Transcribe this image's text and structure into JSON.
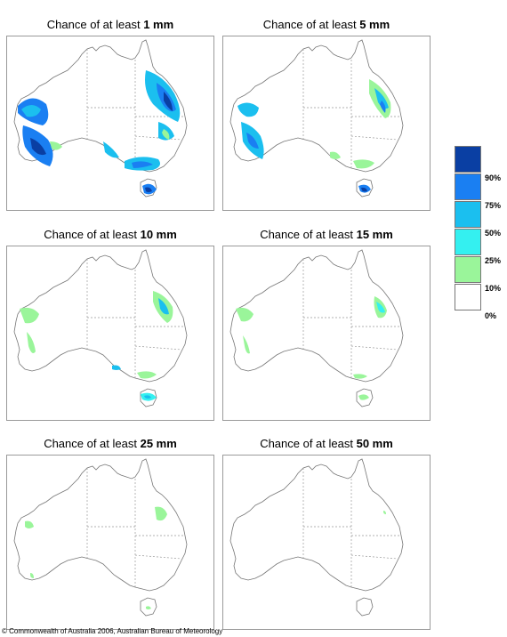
{
  "title_prefix": "Chance of at least",
  "panels": [
    {
      "threshold": "1 mm"
    },
    {
      "threshold": "5 mm"
    },
    {
      "threshold": "10 mm"
    },
    {
      "threshold": "15 mm"
    },
    {
      "threshold": "25 mm"
    },
    {
      "threshold": "50 mm"
    }
  ],
  "legend": {
    "colors": [
      "#0a3fa3",
      "#1a7ff2",
      "#1bbfef",
      "#34f0f0",
      "#9af59a",
      "#ffffff"
    ],
    "labels": [
      "90%",
      "75%",
      "50%",
      "25%",
      "10%",
      "0%"
    ]
  },
  "copyright": "© Commonwealth of Australia 2006, Australian Bureau of Meteorology"
}
